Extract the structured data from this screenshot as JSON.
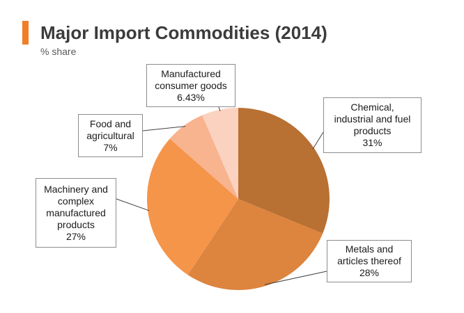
{
  "header": {
    "title": "Major Import Commodities (2014)",
    "subtitle": "% share",
    "accent_color": "#f07e26"
  },
  "chart_data": {
    "type": "pie",
    "title": "Major Import Commodities (2014)",
    "subtitle": "% share",
    "slices": [
      {
        "label_lines": [
          "Chemical,",
          "industrial and fuel",
          "products"
        ],
        "label": "Chemical, industrial and fuel products",
        "value": 31,
        "value_label": "31%",
        "color": "#b87033"
      },
      {
        "label_lines": [
          "Metals and",
          "articles thereof"
        ],
        "label": "Metals and articles thereof",
        "value": 28,
        "value_label": "28%",
        "color": "#dd843e"
      },
      {
        "label_lines": [
          "Machinery and",
          "complex",
          "manufactured",
          "products"
        ],
        "label": "Machinery and complex manufactured products",
        "value": 27,
        "value_label": "27%",
        "color": "#f5954a"
      },
      {
        "label_lines": [
          "Food and",
          "agricultural"
        ],
        "label": "Food and agricultural",
        "value": 7,
        "value_label": "7%",
        "color": "#f8b38f"
      },
      {
        "label_lines": [
          "Manufactured",
          "consumer goods"
        ],
        "label": "Manufactured consumer goods",
        "value": 6.43,
        "value_label": "6.43%",
        "color": "#fbd2c0"
      }
    ],
    "start_angle_deg": 0,
    "direction": "clockwise",
    "legend": "none",
    "label_style": "callout boxes with leader lines"
  }
}
